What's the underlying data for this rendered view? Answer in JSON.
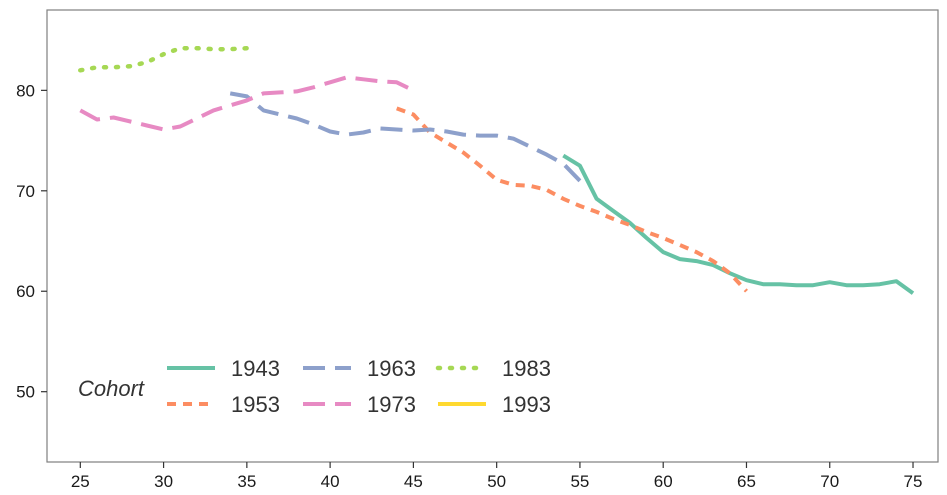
{
  "chart_data": {
    "type": "line",
    "title": "",
    "xlabel": "",
    "ylabel": "",
    "xlim": [
      23,
      76.5
    ],
    "ylim": [
      43,
      88
    ],
    "x_ticks": [
      25,
      30,
      35,
      40,
      45,
      50,
      55,
      60,
      65,
      70,
      75
    ],
    "y_ticks": [
      50,
      60,
      70,
      80
    ],
    "grid": false,
    "legend": {
      "title": "Cohort",
      "position": "bottom-left",
      "columns": 3
    },
    "series": [
      {
        "name": "1943",
        "color": "#66c2a5",
        "dash": "solid",
        "x": [
          54,
          55,
          56,
          57,
          58,
          59,
          60,
          61,
          62,
          63,
          64,
          65,
          66,
          67,
          68,
          69,
          70,
          71,
          72,
          73,
          74,
          75
        ],
        "y": [
          73.5,
          72.5,
          69.2,
          68.0,
          66.8,
          65.3,
          63.9,
          63.2,
          63.0,
          62.6,
          61.8,
          61.1,
          60.7,
          60.7,
          60.6,
          60.6,
          60.9,
          60.6,
          60.6,
          60.7,
          61.0,
          59.8
        ]
      },
      {
        "name": "1953",
        "color": "#fc8d62",
        "dash": "short",
        "x": [
          44,
          45,
          46,
          47,
          48,
          49,
          50,
          51,
          52,
          53,
          54,
          55,
          56,
          57,
          58,
          59,
          60,
          61,
          62,
          63,
          64,
          65
        ],
        "y": [
          78.2,
          77.6,
          75.8,
          74.8,
          73.8,
          72.5,
          71.1,
          70.6,
          70.5,
          70.1,
          69.2,
          68.5,
          67.9,
          67.2,
          66.6,
          65.9,
          65.3,
          64.6,
          63.9,
          63.0,
          61.8,
          60.0
        ]
      },
      {
        "name": "1963",
        "color": "#8da0cb",
        "dash": "long",
        "x": [
          34,
          35,
          36,
          37,
          38,
          39,
          40,
          41,
          42,
          43,
          44,
          45,
          46,
          47,
          48,
          49,
          50,
          51,
          52,
          53,
          54,
          55
        ],
        "y": [
          79.7,
          79.4,
          78.0,
          77.6,
          77.2,
          76.6,
          75.9,
          75.6,
          75.8,
          76.2,
          76.1,
          76.0,
          76.1,
          75.9,
          75.6,
          75.5,
          75.5,
          75.2,
          74.4,
          73.6,
          72.7,
          71.0
        ]
      },
      {
        "name": "1973",
        "color": "#e78ac3",
        "dash": "long",
        "x": [
          25,
          26,
          27,
          28,
          29,
          30,
          31,
          32,
          33,
          34,
          35,
          36,
          37,
          38,
          39,
          40,
          41,
          42,
          43,
          44,
          45
        ],
        "y": [
          78.0,
          77.1,
          77.3,
          76.9,
          76.5,
          76.1,
          76.4,
          77.2,
          78.0,
          78.5,
          79.0,
          79.7,
          79.8,
          79.9,
          80.3,
          80.8,
          81.3,
          81.1,
          80.9,
          80.8,
          80.0
        ]
      },
      {
        "name": "1983",
        "color": "#a6d854",
        "dash": "dotted",
        "x": [
          25,
          26,
          27,
          28,
          29,
          30,
          31,
          32,
          33,
          34,
          35
        ],
        "y": [
          82.0,
          82.3,
          82.3,
          82.4,
          82.8,
          83.6,
          84.2,
          84.2,
          84.1,
          84.1,
          84.2
        ]
      },
      {
        "name": "1993",
        "color": "#ffd92f",
        "dash": "solid",
        "x": [],
        "y": []
      }
    ]
  }
}
